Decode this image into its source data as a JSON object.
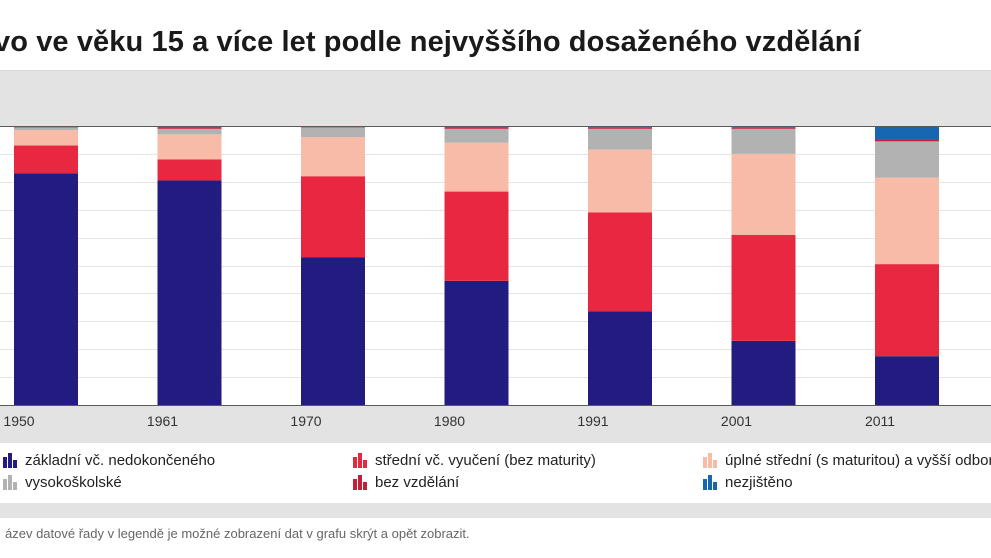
{
  "page": {
    "title": "vo ve věku 15 a více let podle nejvyššího dosaženého vzdělání",
    "footnote": "ázev datové řady v legendě je možné zobrazení dat v grafu skrýt a opět zobrazit."
  },
  "chart_data": {
    "type": "bar",
    "stacked": true,
    "percent": true,
    "title": "vo ve věku 15 a více let podle nejvyššího dosaženého vzdělání",
    "categories": [
      "1950",
      "1961",
      "1970",
      "1980",
      "1991",
      "2001",
      "2011"
    ],
    "ylim": [
      0,
      100
    ],
    "grid": true,
    "legend_position": "bottom",
    "series": [
      {
        "name": "základní vč. nedokončeného",
        "color": "#221c80",
        "values": [
          83,
          80.5,
          53,
          44.5,
          33.5,
          23,
          17.5
        ]
      },
      {
        "name": "střední vč. vyučení (bez maturity)",
        "color": "#e82840",
        "values": [
          10,
          7.5,
          29,
          32,
          35.5,
          38,
          33
        ]
      },
      {
        "name": "úplné střední (s maturitou) a vyšší odborné",
        "color": "#f8bba7",
        "values": [
          5.5,
          9,
          14,
          17.5,
          22.5,
          29,
          31
        ]
      },
      {
        "name": "vysokoškolské",
        "color": "#b2b2b2",
        "values": [
          1,
          2,
          3.5,
          5,
          7.5,
          9,
          13
        ]
      },
      {
        "name": "bez vzdělání",
        "color": "#c41e3a",
        "values": [
          0.5,
          0.5,
          0.3,
          0.5,
          0.4,
          0.4,
          0.5
        ]
      },
      {
        "name": "nezjištěno",
        "color": "#1766b1",
        "values": [
          0,
          0.5,
          0.2,
          0.5,
          0.6,
          0.6,
          5
        ]
      }
    ]
  }
}
